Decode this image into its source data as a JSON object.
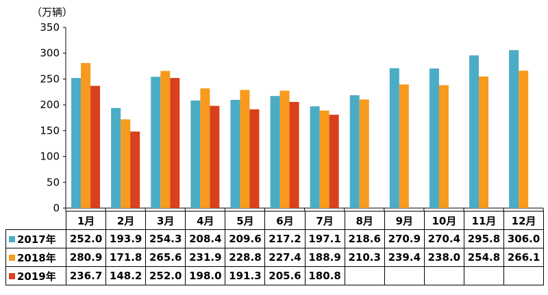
{
  "chart_data": {
    "type": "bar",
    "unit_label": "（万辆）",
    "categories": [
      "1月",
      "2月",
      "3月",
      "4月",
      "5月",
      "6月",
      "7月",
      "8月",
      "9月",
      "10月",
      "11月",
      "12月"
    ],
    "ylim": [
      0,
      350
    ],
    "yticks": [
      0,
      50,
      100,
      150,
      200,
      250,
      300,
      350
    ],
    "grid": false,
    "legend": "table-left",
    "series": [
      {
        "name": "2017年",
        "color": "#4bacc6",
        "values": [
          252.0,
          193.9,
          254.3,
          208.4,
          209.6,
          217.2,
          197.1,
          218.6,
          270.9,
          270.4,
          295.8,
          306.0
        ],
        "labels": [
          "252.0",
          "193.9",
          "254.3",
          "208.4",
          "209.6",
          "217.2",
          "197.1",
          "218.6",
          "270.9",
          "270.4",
          "295.8",
          "306.0"
        ]
      },
      {
        "name": "2018年",
        "color": "#f79a1e",
        "values": [
          280.9,
          171.8,
          265.6,
          231.9,
          228.8,
          227.4,
          188.9,
          210.3,
          239.4,
          238.0,
          254.8,
          266.1
        ],
        "labels": [
          "280.9",
          "171.8",
          "265.6",
          "231.9",
          "228.8",
          "227.4",
          "188.9",
          "210.3",
          "239.4",
          "238.0",
          "254.8",
          "266.1"
        ]
      },
      {
        "name": "2019年",
        "color": "#d9401c",
        "values": [
          236.7,
          148.2,
          252.0,
          198.0,
          191.3,
          205.6,
          180.8,
          null,
          null,
          null,
          null,
          null
        ],
        "labels": [
          "236.7",
          "148.2",
          "252.0",
          "198.0",
          "191.3",
          "205.6",
          "180.8",
          "",
          "",
          "",
          "",
          ""
        ]
      }
    ]
  }
}
